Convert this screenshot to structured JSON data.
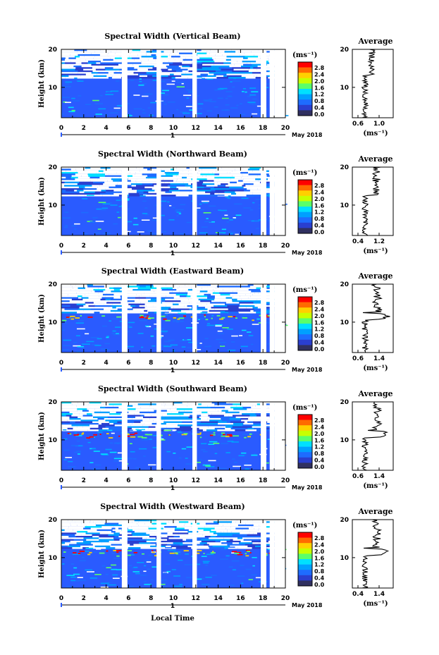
{
  "chart_data": [
    {
      "type": "heatmap",
      "title": "Spectral Width (Vertical Beam)",
      "ylabel": "Height (km)",
      "x_ticks": [
        "0",
        "2",
        "4",
        "6",
        "8",
        "10",
        "12",
        "14",
        "16",
        "18",
        "20"
      ],
      "y_ticks": [
        "10",
        "20"
      ],
      "date_label": "May 2018",
      "day_label": "1",
      "colorbar": {
        "unit": "(ms⁻¹)",
        "ticks": [
          "2.8",
          "2.4",
          "2.0",
          "1.6",
          "1.2",
          "0.8",
          "0.4",
          "0.0"
        ]
      },
      "average": {
        "title": "Average",
        "xlabel": "(ms⁻¹)",
        "x_ticks": [
          "0.6",
          "1.0"
        ],
        "y_ticks": [
          "10",
          "20"
        ]
      }
    },
    {
      "type": "heatmap",
      "title": "Spectral Width (Northward Beam)",
      "ylabel": "Height (km)",
      "x_ticks": [
        "0",
        "2",
        "4",
        "6",
        "8",
        "10",
        "12",
        "14",
        "16",
        "18",
        "20"
      ],
      "y_ticks": [
        "10",
        "20"
      ],
      "date_label": "May 2018",
      "day_label": "1",
      "colorbar": {
        "unit": "(ms⁻¹)",
        "ticks": [
          "2.8",
          "2.4",
          "2.0",
          "1.6",
          "1.2",
          "0.8",
          "0.4",
          "0.0"
        ]
      },
      "average": {
        "title": "Average",
        "xlabel": "(ms⁻¹)",
        "x_ticks": [
          "0.4",
          "1.2"
        ],
        "y_ticks": [
          "10",
          "20"
        ]
      }
    },
    {
      "type": "heatmap",
      "title": "Spectral Width (Eastward Beam)",
      "ylabel": "Height (km)",
      "x_ticks": [
        "0",
        "2",
        "4",
        "6",
        "8",
        "10",
        "12",
        "14",
        "16",
        "18",
        "20"
      ],
      "y_ticks": [
        "10",
        "20"
      ],
      "date_label": "May 2018",
      "day_label": "1",
      "colorbar": {
        "unit": "(ms⁻¹)",
        "ticks": [
          "2.8",
          "2.4",
          "2.0",
          "1.6",
          "1.2",
          "0.8",
          "0.4",
          "0.0"
        ]
      },
      "average": {
        "title": "Average",
        "xlabel": "(ms⁻¹)",
        "x_ticks": [
          "0.6",
          "1.4"
        ],
        "y_ticks": [
          "10",
          "20"
        ]
      }
    },
    {
      "type": "heatmap",
      "title": "Spectral Width (Southward Beam)",
      "ylabel": "Height (km)",
      "x_ticks": [
        "0",
        "2",
        "4",
        "6",
        "8",
        "10",
        "12",
        "14",
        "16",
        "18",
        "20"
      ],
      "y_ticks": [
        "10",
        "20"
      ],
      "date_label": "May 2018",
      "day_label": "1",
      "colorbar": {
        "unit": "(ms⁻¹)",
        "ticks": [
          "2.8",
          "2.4",
          "2.0",
          "1.6",
          "1.2",
          "0.8",
          "0.4",
          "0.0"
        ]
      },
      "average": {
        "title": "Average",
        "xlabel": "(ms⁻¹)",
        "x_ticks": [
          "0.6",
          "1.4"
        ],
        "y_ticks": [
          "10",
          "20"
        ]
      }
    },
    {
      "type": "heatmap",
      "title": "Spectral Width (Westward Beam)",
      "ylabel": "Height (km)",
      "x_ticks": [
        "0",
        "2",
        "4",
        "6",
        "8",
        "10",
        "12",
        "14",
        "16",
        "18",
        "20"
      ],
      "y_ticks": [
        "10",
        "20"
      ],
      "date_label": "May 2018",
      "day_label": "1",
      "colorbar": {
        "unit": "(ms⁻¹)",
        "ticks": [
          "2.8",
          "2.4",
          "2.0",
          "1.6",
          "1.2",
          "0.8",
          "0.4",
          "0.0"
        ]
      },
      "average": {
        "title": "Average",
        "xlabel": "(ms⁻¹)",
        "x_ticks": [
          "0.4",
          "1.4"
        ],
        "y_ticks": [
          "10",
          "20"
        ]
      }
    }
  ],
  "xlabel": "Local Time",
  "data_gaps_hours": [
    [
      5.4,
      5.9
    ],
    [
      8.5,
      8.9
    ],
    [
      11.7,
      12.1
    ],
    [
      17.8,
      18.3
    ],
    [
      18.6,
      19.0
    ]
  ],
  "colors": {
    "plot_bg": "#2a5bff",
    "frame": "#000000",
    "fill": "#ffffff"
  }
}
